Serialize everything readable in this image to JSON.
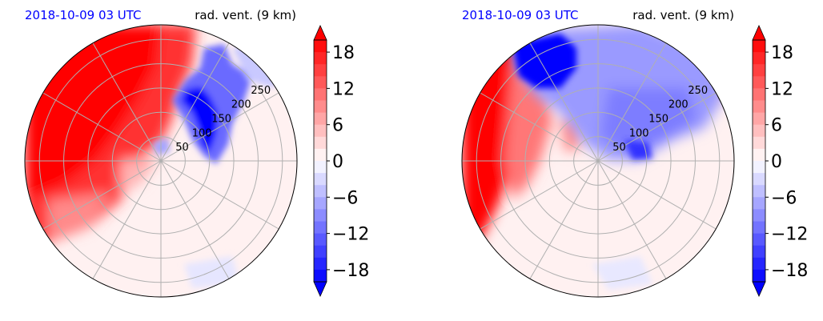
{
  "chart_data": [
    {
      "type": "heatmap",
      "projection": "polar",
      "title_left": "2018-10-09 03 UTC",
      "title_right": "rad. vent. (9 km)",
      "title_left_color": "#0000ff",
      "radial_ticks": [
        "50",
        "100",
        "150",
        "200",
        "250"
      ],
      "radial_values": [
        50,
        100,
        150,
        200,
        250
      ],
      "radial_max": 280,
      "angular_gridlines_deg": [
        0,
        30,
        60,
        90,
        120,
        150,
        180,
        210,
        240,
        270,
        300,
        330
      ],
      "grid": true,
      "colorbar": {
        "ticks": [
          "18",
          "12",
          "6",
          "0",
          "−6",
          "−12",
          "−18"
        ],
        "values": [
          18,
          12,
          6,
          0,
          -6,
          -12,
          -18
        ],
        "vmin": -20,
        "vmax": 20,
        "levels": 20,
        "extend": "both",
        "cmap": "bwr"
      },
      "regions": [
        {
          "kind": "positive",
          "color": "#ff0000",
          "note": "west and north-west sectors strong outflow"
        },
        {
          "kind": "negative",
          "color": "#0000ff",
          "note": "narrow band north-east of center"
        }
      ]
    },
    {
      "type": "heatmap",
      "projection": "polar",
      "title_left": "2018-10-09 03 UTC",
      "title_right": "rad. vent. (9 km)",
      "title_left_color": "#0000ff",
      "radial_ticks": [
        "50",
        "100",
        "150",
        "200",
        "250"
      ],
      "radial_values": [
        50,
        100,
        150,
        200,
        250
      ],
      "radial_max": 280,
      "angular_gridlines_deg": [
        0,
        30,
        60,
        90,
        120,
        150,
        180,
        210,
        240,
        270,
        300,
        330
      ],
      "grid": true,
      "colorbar": {
        "ticks": [
          "18",
          "12",
          "6",
          "0",
          "−6",
          "−12",
          "−18"
        ],
        "values": [
          18,
          12,
          6,
          0,
          -6,
          -12,
          -18
        ],
        "vmin": -20,
        "vmax": 20,
        "levels": 20,
        "extend": "both",
        "cmap": "bwr"
      },
      "regions": [
        {
          "kind": "positive",
          "color": "#ff0000",
          "note": "western edge strong outflow"
        },
        {
          "kind": "negative",
          "color": "#0000ff",
          "note": "broad inflow across north, core north-west"
        }
      ]
    }
  ]
}
